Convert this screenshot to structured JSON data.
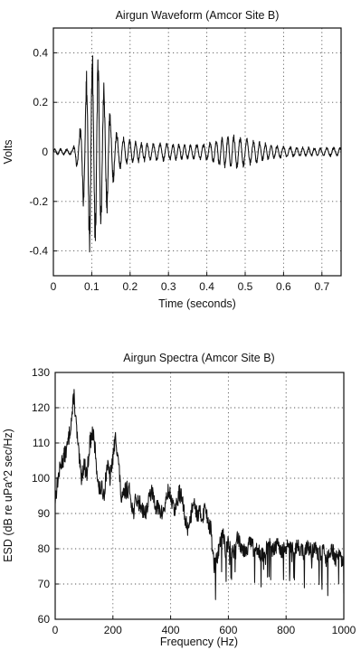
{
  "chart_data": [
    {
      "type": "line",
      "title": "Airgun Waveform (Amcor Site B)",
      "xlabel": "Time (seconds)",
      "ylabel": "Volts",
      "xlim": [
        0,
        0.75
      ],
      "ylim": [
        -0.5,
        0.5
      ],
      "xticks": [
        0,
        0.1,
        0.2,
        0.3,
        0.4,
        0.5,
        0.6,
        0.7
      ],
      "xtick_labels": [
        "0",
        "0.1",
        "0.2",
        "0.3",
        "0.4",
        "0.5",
        "0.6",
        "0.7"
      ],
      "yticks": [
        0.4,
        0.2,
        0,
        -0.2,
        -0.4
      ],
      "ytick_labels": [
        "0.4",
        "0.2",
        "0",
        "-0.2",
        "-0.4"
      ],
      "grid": true,
      "series": [
        {
          "color": "#111111",
          "envelope_x": [
            0,
            0.05,
            0.07,
            0.08,
            0.09,
            0.1,
            0.11,
            0.12,
            0.13,
            0.14,
            0.15,
            0.17,
            0.2,
            0.25,
            0.3,
            0.35,
            0.4,
            0.43,
            0.47,
            0.5,
            0.55,
            0.6,
            0.65,
            0.7,
            0.75
          ],
          "envelope_amplitude": [
            0.01,
            0.01,
            0.08,
            0.2,
            0.32,
            0.34,
            0.34,
            0.3,
            0.24,
            0.2,
            0.12,
            0.06,
            0.04,
            0.03,
            0.03,
            0.025,
            0.03,
            0.05,
            0.06,
            0.05,
            0.03,
            0.02,
            0.015,
            0.015,
            0.015
          ],
          "dominant_frequency_hz": 62
        }
      ]
    },
    {
      "type": "line",
      "title": "Airgun Spectra (Amcor Site B)",
      "xlabel": "Frequency (Hz)",
      "ylabel": "ESD (dB re uPa^2 sec/Hz)",
      "xlim": [
        0,
        1000
      ],
      "ylim": [
        60,
        130
      ],
      "xticks": [
        0,
        200,
        400,
        600,
        800,
        1000
      ],
      "xtick_labels": [
        "0",
        "200",
        "400",
        "600",
        "800",
        "1000"
      ],
      "yticks": [
        60,
        70,
        80,
        90,
        100,
        110,
        120,
        130
      ],
      "ytick_labels": [
        "60",
        "70",
        "80",
        "90",
        "100",
        "110",
        "120",
        "130"
      ],
      "grid": true,
      "series": [
        {
          "color": "#111111",
          "x": [
            0,
            10,
            20,
            30,
            40,
            50,
            60,
            65,
            70,
            80,
            90,
            100,
            110,
            120,
            130,
            140,
            150,
            160,
            170,
            180,
            190,
            200,
            210,
            220,
            230,
            240,
            250,
            260,
            270,
            280,
            290,
            300,
            310,
            320,
            330,
            340,
            350,
            360,
            370,
            380,
            390,
            400,
            410,
            420,
            430,
            440,
            450,
            460,
            470,
            480,
            490,
            500,
            510,
            520,
            530,
            540,
            550,
            560,
            570,
            580,
            590,
            600,
            610,
            620,
            630,
            640,
            650,
            660,
            670,
            680,
            690,
            700,
            710,
            720,
            730,
            740,
            750,
            760,
            770,
            780,
            790,
            800,
            810,
            820,
            830,
            840,
            850,
            860,
            870,
            880,
            890,
            900,
            910,
            920,
            930,
            940,
            950,
            960,
            970,
            980,
            990,
            1000
          ],
          "y": [
            94,
            100,
            104,
            106,
            108,
            113,
            119,
            124,
            118,
            108,
            100,
            104,
            101,
            110,
            113,
            107,
            97,
            97,
            96,
            104,
            100,
            106,
            112,
            104,
            93,
            96,
            97,
            96,
            90,
            94,
            93,
            92,
            90,
            92,
            96,
            95,
            92,
            91,
            90,
            92,
            96,
            95,
            91,
            92,
            96,
            94,
            88,
            86,
            89,
            95,
            90,
            90,
            89,
            92,
            88,
            85,
            75,
            77,
            81,
            85,
            80,
            82,
            80,
            79,
            84,
            82,
            80,
            80,
            81,
            82,
            79,
            81,
            79,
            78,
            80,
            82,
            79,
            80,
            81,
            79,
            80,
            80,
            81,
            80,
            79,
            81,
            80,
            79,
            81,
            80,
            79,
            81,
            78,
            79,
            80,
            77,
            79,
            80,
            77,
            78,
            77,
            76
          ]
        }
      ]
    }
  ]
}
